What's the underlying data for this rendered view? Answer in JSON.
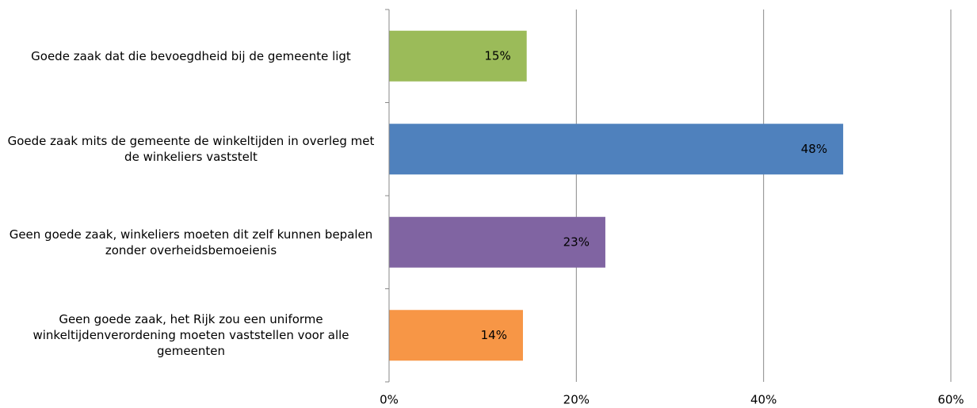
{
  "chart_data": {
    "type": "bar",
    "orientation": "horizontal",
    "categories": [
      "Goede zaak dat die bevoegdheid bij de gemeente ligt",
      "Goede zaak mits de gemeente de winkeltijden in overleg met de winkeliers vaststelt",
      "Geen goede zaak, winkeliers moeten dit zelf kunnen bepalen zonder overheidsbemoeienis",
      "Geen goede zaak, het Rijk zou een uniforme winkeltijdenverordening moeten vaststellen voor alle gemeenten"
    ],
    "values": [
      14.7,
      48.5,
      23.1,
      14.3
    ],
    "value_labels": [
      "15%",
      "48%",
      "23%",
      "14%"
    ],
    "colors": [
      "#9bbb59",
      "#4f81bd",
      "#8064a2",
      "#f79646"
    ],
    "xlim": [
      0,
      60
    ],
    "xticks": [
      {
        "value": 0,
        "label": "0%"
      },
      {
        "value": 20,
        "label": "20%"
      },
      {
        "value": 40,
        "label": "40%"
      },
      {
        "value": 60,
        "label": "60%"
      }
    ],
    "grid": true
  }
}
